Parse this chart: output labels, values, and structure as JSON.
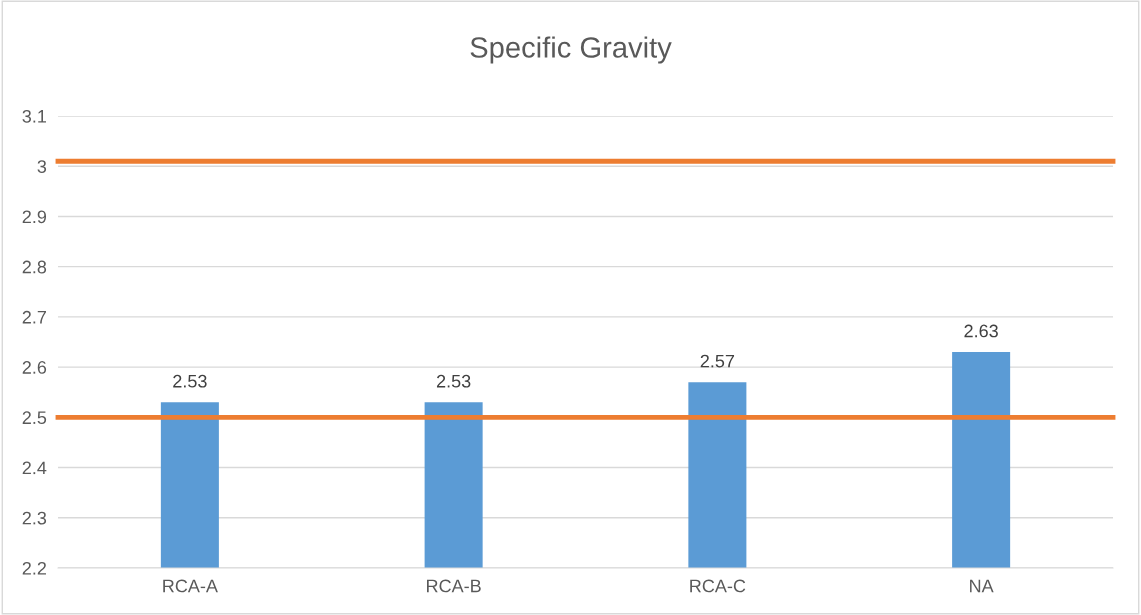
{
  "chart_data": {
    "type": "bar",
    "title": "Specific Gravity",
    "categories": [
      "RCA-A",
      "RCA-B",
      "RCA-C",
      "NA"
    ],
    "values": [
      2.53,
      2.53,
      2.57,
      2.63
    ],
    "color": "#5b9bd5",
    "data_labels": true,
    "ylim": [
      2.2,
      3.1
    ],
    "yticks": [
      2.2,
      2.3,
      2.4,
      2.5,
      2.6,
      2.7,
      2.8,
      2.9,
      {
        "value": 3.0,
        "label": "3"
      },
      3.1
    ],
    "grid": "y",
    "ref_lines": [
      {
        "axis": "y",
        "value": 3.01,
        "color": "#ed7d31"
      },
      {
        "axis": "y",
        "value": 2.5,
        "color": "#ed7d31"
      }
    ]
  }
}
